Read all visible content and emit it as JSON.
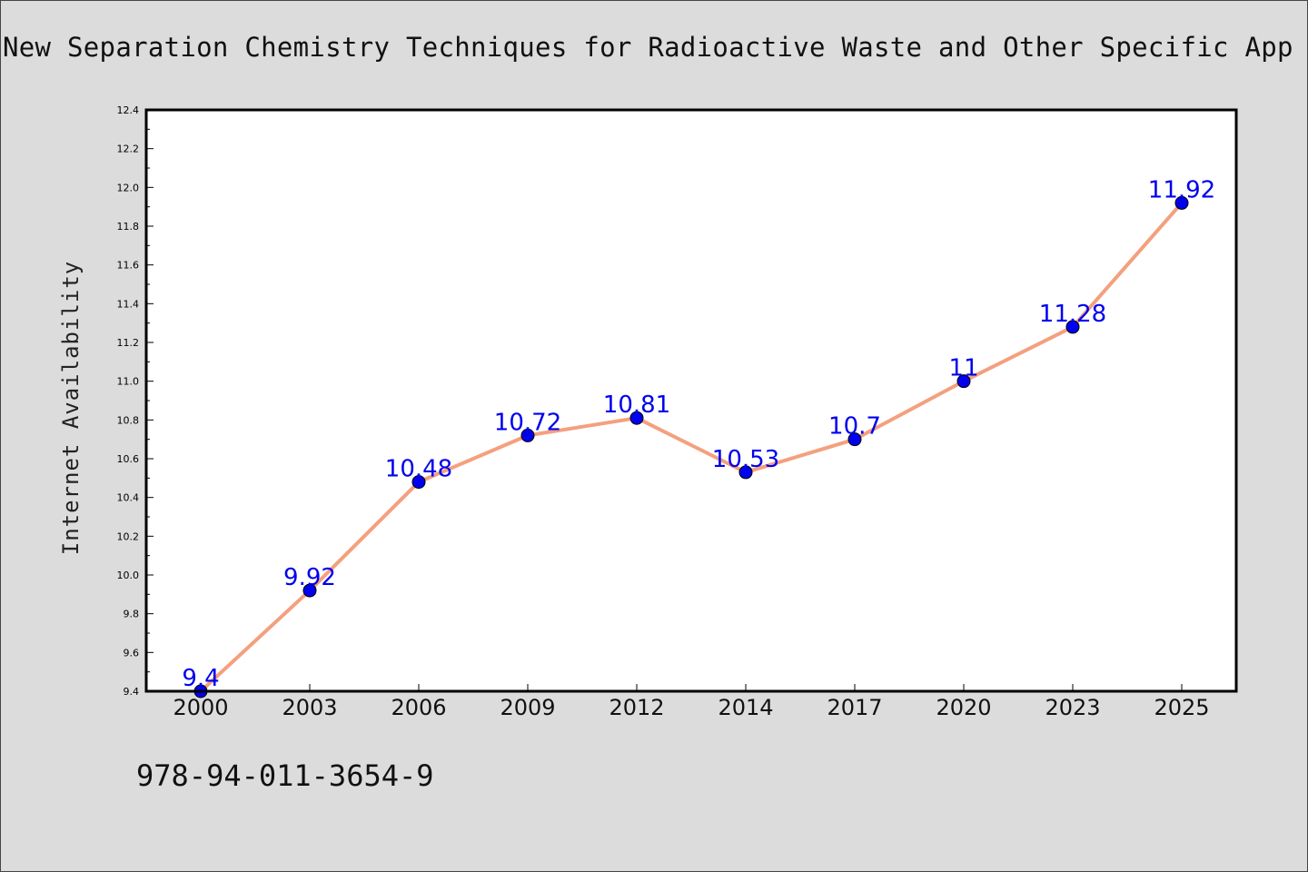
{
  "chart_data": {
    "type": "line",
    "title": "New Separation Chemistry Techniques for Radioactive Waste and Other Specific App",
    "xlabel": "",
    "ylabel": "Internet Availability",
    "categories": [
      "2000",
      "2003",
      "2006",
      "2009",
      "2012",
      "2014",
      "2017",
      "2020",
      "2023",
      "2025"
    ],
    "series": [
      {
        "values": [
          9.4,
          9.92,
          10.48,
          10.72,
          10.81,
          10.53,
          10.7,
          11,
          11.28,
          11.92
        ],
        "labels": [
          "9.4",
          "9.92",
          "10.48",
          "10.72",
          "10.81",
          "10.53",
          "10.7",
          "11",
          "11.28",
          "11.92"
        ]
      }
    ],
    "ylim": [
      9.4,
      12.4
    ],
    "yticks": [
      "9.4",
      "9.6",
      "9.8",
      "10.0",
      "10.2",
      "10.4",
      "10.6",
      "10.8",
      "11.0",
      "11.2",
      "11.4",
      "11.6",
      "11.8",
      "12.0",
      "12.2",
      "12.4"
    ],
    "grid": false,
    "legend": "none",
    "colors": {
      "line": "#f4a07e",
      "marker": "#0000ee",
      "data_label": "#0000ee",
      "background": "#dcdcdc",
      "plot_area": "#ffffff"
    }
  },
  "annotation": {
    "isbn": "978-94-011-3654-9"
  }
}
